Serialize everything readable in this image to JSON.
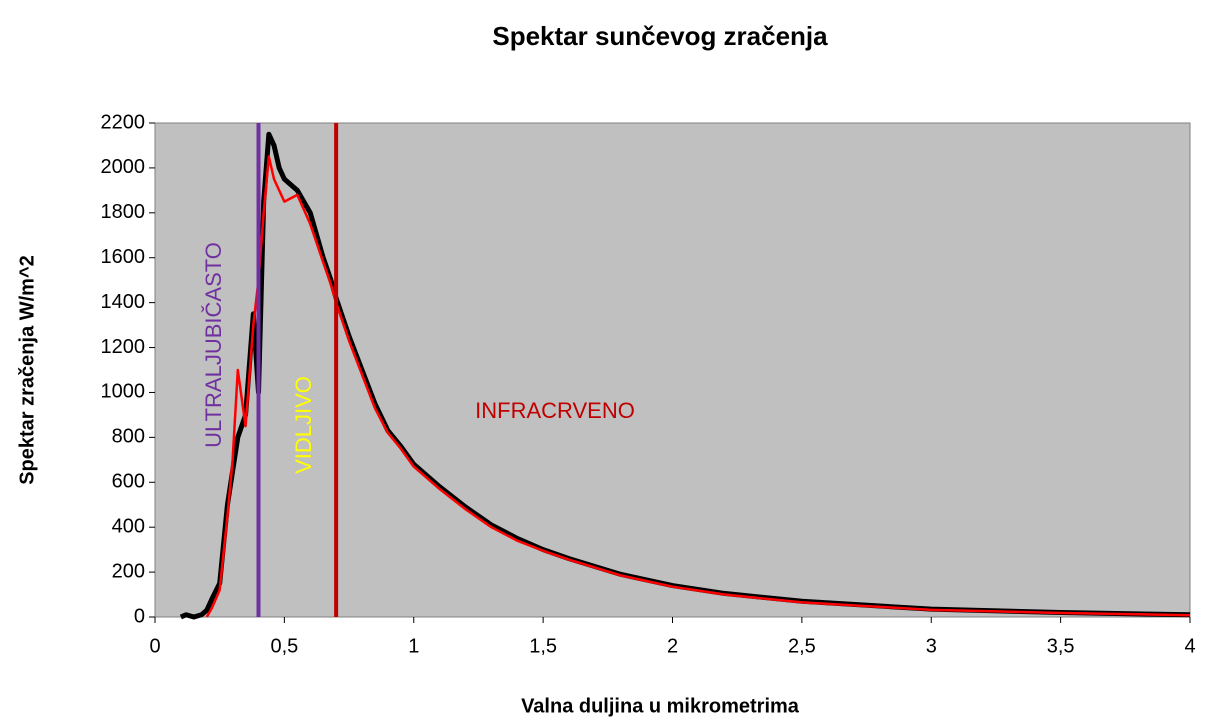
{
  "chart_data": {
    "type": "line",
    "title": "Spektar sunčevog zračenja",
    "x_label": "Valna duljina u mikrometrima",
    "y_label": "Spektar zračenja W/m^2",
    "x": [
      0.1,
      0.12,
      0.15,
      0.18,
      0.2,
      0.22,
      0.25,
      0.28,
      0.3,
      0.32,
      0.35,
      0.37,
      0.38,
      0.4,
      0.42,
      0.44,
      0.46,
      0.48,
      0.5,
      0.55,
      0.6,
      0.65,
      0.68,
      0.7,
      0.75,
      0.8,
      0.85,
      0.9,
      0.95,
      1.0,
      1.1,
      1.2,
      1.3,
      1.4,
      1.5,
      1.6,
      1.8,
      2.0,
      2.2,
      2.5,
      3.0,
      3.5,
      4.0
    ],
    "series": [
      {
        "color": "#000000",
        "values": [
          0,
          10,
          0,
          10,
          30,
          80,
          150,
          500,
          650,
          800,
          900,
          1200,
          1350,
          1000,
          1850,
          2150,
          2100,
          2000,
          1950,
          1900,
          1800,
          1600,
          1500,
          1420,
          1250,
          1100,
          950,
          830,
          760,
          680,
          580,
          490,
          410,
          350,
          300,
          260,
          190,
          140,
          105,
          70,
          35,
          20,
          10
        ]
      },
      {
        "color": "#ff0000",
        "values": [
          null,
          null,
          null,
          null,
          0,
          40,
          120,
          450,
          700,
          1100,
          850,
          1150,
          1300,
          1500,
          1800,
          2050,
          1950,
          1900,
          1850,
          1880,
          1750,
          1580,
          1480,
          1400,
          1230,
          1080,
          930,
          820,
          750,
          670,
          570,
          480,
          400,
          340,
          295,
          255,
          185,
          135,
          100,
          65,
          32,
          18,
          8
        ]
      }
    ],
    "xlim": [
      0,
      4
    ],
    "ylim": [
      0,
      2200
    ],
    "xticks": [
      0,
      {
        "value": 0.5,
        "label": "0,5"
      },
      1,
      {
        "value": 1.5,
        "label": "1,5"
      },
      2,
      {
        "value": 2.5,
        "label": "2,5"
      },
      3,
      {
        "value": 3.5,
        "label": "3,5"
      },
      4
    ],
    "yticks": [
      0,
      200,
      400,
      600,
      800,
      1000,
      1200,
      1400,
      1600,
      1800,
      2000,
      2200
    ],
    "vertical_lines": [
      {
        "x": 0.4,
        "color": "#7030a0"
      },
      {
        "x": 0.7,
        "color": "#c00000"
      }
    ],
    "annotations": [
      {
        "text": "ULTRALJUBIČASTO",
        "color": "#7030a0"
      },
      {
        "text": "VIDLJIVO",
        "color": "#ffff00"
      },
      {
        "text": "INFRACRVENO",
        "color": "#c00000"
      }
    ],
    "background": "#c0c0c0"
  }
}
